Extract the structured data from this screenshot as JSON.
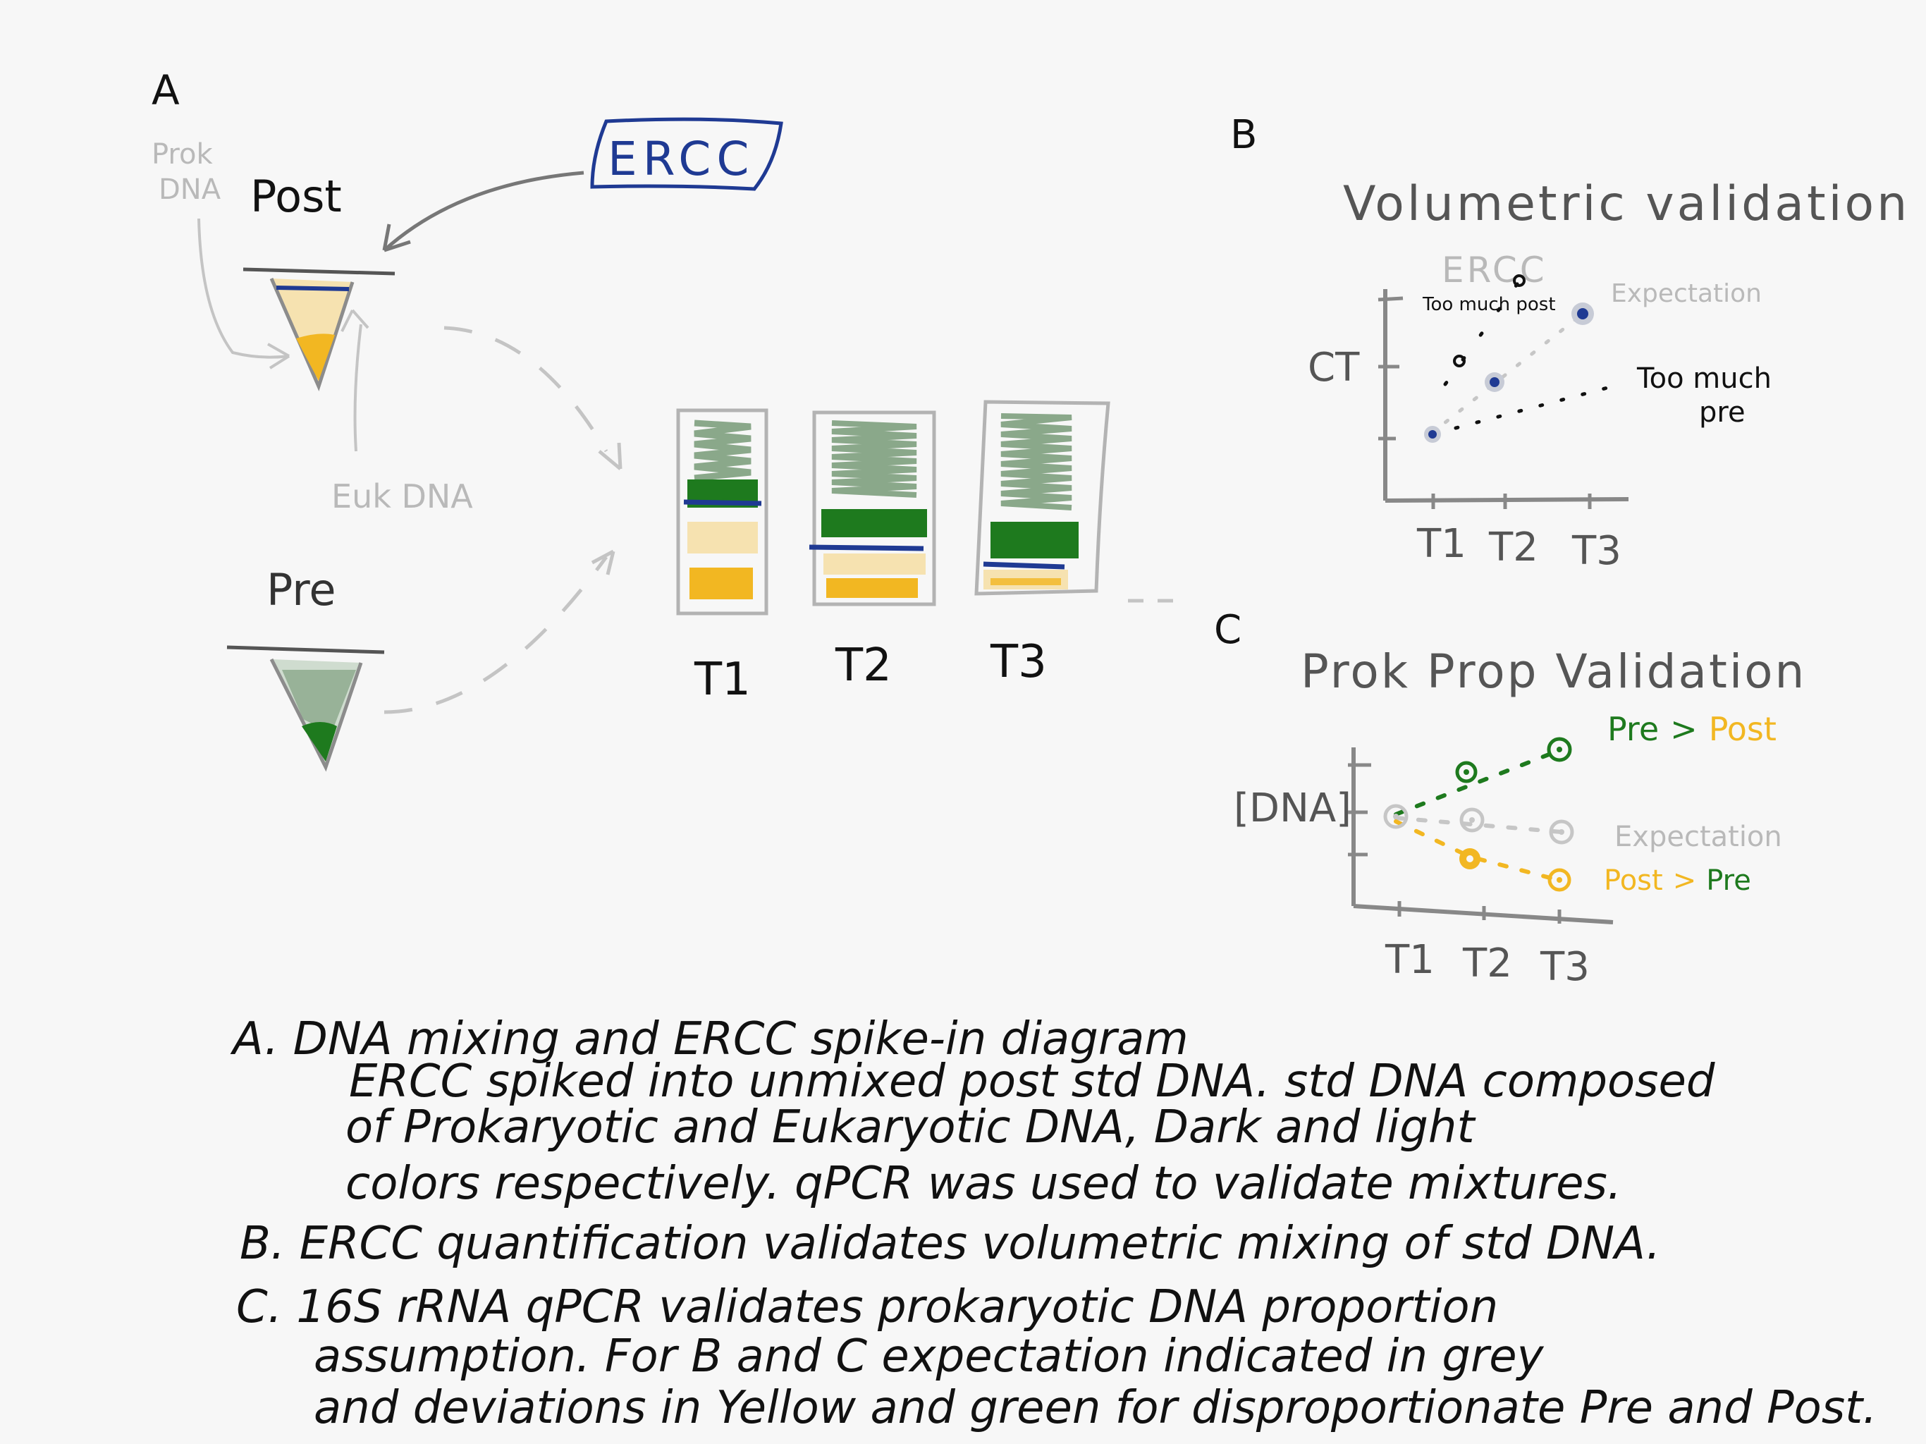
{
  "panel_a": {
    "letter": "A",
    "ercc_box": "ERCC",
    "post_label": "Post",
    "prok_dna_label_1": "Prok",
    "prok_dna_label_2": "DNA",
    "euk_dna_label": "Euk DNA",
    "pre_label": "Pre",
    "tubes": [
      "T1",
      "T2",
      "T3"
    ]
  },
  "panel_b": {
    "letter": "B",
    "title": "Volumetric validation",
    "y_label": "CT",
    "ercc_label": "ERCC",
    "expectation_label": "Expectation",
    "too_much_post": "Too much post",
    "too_much_pre_1": "Too much",
    "too_much_pre_2": "pre",
    "x_ticks": [
      "T1",
      "T2",
      "T3"
    ]
  },
  "panel_c": {
    "letter": "C",
    "title": "Prok Prop Validation",
    "y_label": "[DNA]",
    "pre_gt_post_a": "Pre",
    "pre_gt_post_op": ">",
    "pre_gt_post_b": "Post",
    "expectation_label": "Expectation",
    "post_gt_pre_a": "Post",
    "post_gt_pre_op": ">",
    "post_gt_pre_b": "Pre",
    "x_ticks": [
      "T1",
      "T2",
      "T3"
    ]
  },
  "caption": {
    "line1": "A. DNA mixing and ERCC spike-in diagram",
    "line2": "ERCC spiked into unmixed post std DNA. std DNA composed",
    "line3": "of Prokaryotic and Eukaryotic DNA, Dark and light",
    "line4": "colors respectively. qPCR was used to validate mixtures.",
    "line5": "B. ERCC quantification validates volumetric mixing of std DNA.",
    "line6": "C. 16S rRNA qPCR validates prokaryotic DNA proportion",
    "line7": "assumption. For B and C expectation indicated in grey",
    "line8": "and deviations in Yellow and green for disproportionate Pre and Post."
  },
  "colors": {
    "blue": "#1f3a93",
    "green": "#1e7a1e",
    "light_green": "#8aa88a",
    "yellow": "#f2b722",
    "cream": "#f6e2b0",
    "grey": "#b9b9b9",
    "ink": "#111111"
  }
}
